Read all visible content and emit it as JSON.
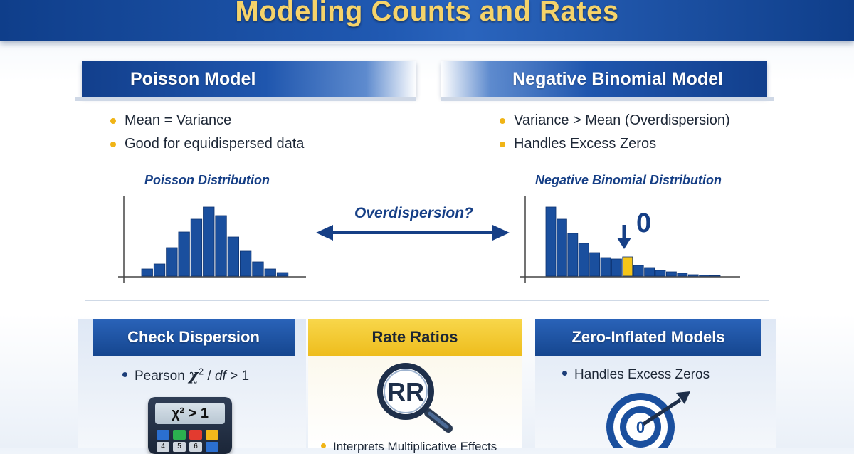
{
  "title": "Modeling Counts and Rates",
  "poisson": {
    "header": "Poisson Model",
    "bullets": [
      "Mean = Variance",
      "Good for equidispersed data"
    ],
    "dist_title": "Poisson Distribution",
    "bars": [
      0.1,
      0.17,
      0.4,
      0.62,
      0.8,
      0.97,
      0.85,
      0.55,
      0.35,
      0.2,
      0.1,
      0.05
    ]
  },
  "negbin": {
    "header": "Negative Binomial Model",
    "bullets": [
      "Variance > Mean (Overdispersion)",
      "Handles Excess Zeros"
    ],
    "dist_title": "Negative Binomial Distribution",
    "bars": [
      0.97,
      0.8,
      0.6,
      0.46,
      0.33,
      0.26,
      0.24,
      0.27,
      0.15,
      0.12,
      0.08,
      0.06,
      0.04,
      0.02,
      0.015,
      0.01
    ],
    "highlight_index": 7,
    "zero_label": "0",
    "highlight_color": "#f5c518"
  },
  "arrow_label": "Overdispersion?",
  "cards": {
    "dispersion": {
      "header": "Check Dispersion",
      "bullet_pre": "Pearson ",
      "bullet_chi": "χ",
      "bullet_sup": "2",
      "bullet_post": " / ",
      "bullet_df": "df",
      "bullet_tail": " > 1",
      "calculator_display": "χ² > 1",
      "calc_keys": [
        "4",
        "5",
        "6"
      ]
    },
    "rate": {
      "header": "Rate Ratios",
      "icon_text": "RR",
      "bullet": "Interprets Multiplicative Effects"
    },
    "zero": {
      "header": "Zero-Inflated Models",
      "bullet": "Handles Excess Zeros",
      "target_text": "0"
    }
  },
  "colors": {
    "brand_blue": "#1f56ae",
    "dark_blue": "#123f8c",
    "bar_blue": "#1a4f9e",
    "accent_yellow": "#f0b416",
    "title_gold": "#f5d36a"
  }
}
